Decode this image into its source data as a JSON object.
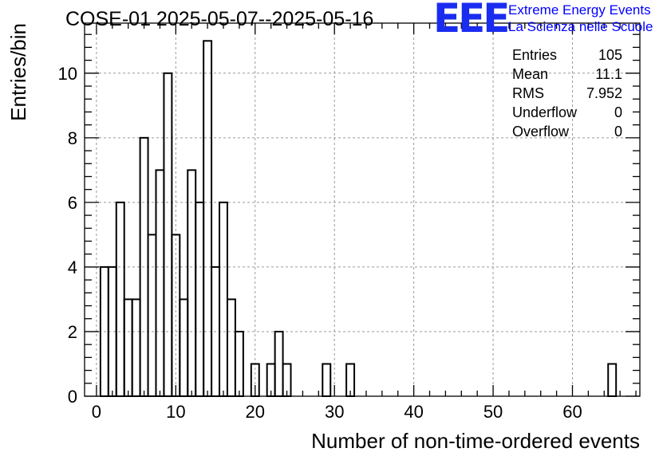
{
  "chart_data": {
    "type": "bar",
    "title": "COSE-01 2025-05-07--2025-05-16",
    "xlabel": "Number of non-time-ordered events",
    "ylabel": "Entries/bin",
    "xlim": [
      -1.5,
      68.5
    ],
    "ylim": [
      0,
      11.55
    ],
    "x_ticks": [
      0,
      10,
      20,
      30,
      40,
      50,
      60
    ],
    "y_ticks": [
      0,
      2,
      4,
      6,
      8,
      10
    ],
    "grid": true,
    "bin_width": 1,
    "bin_starts": [
      0.5,
      1.5,
      2.5,
      3.5,
      4.5,
      5.5,
      6.5,
      7.5,
      8.5,
      9.5,
      10.5,
      11.5,
      12.5,
      13.5,
      14.5,
      15.5,
      16.5,
      17.5,
      18.5,
      19.5,
      20.5,
      21.5,
      22.5,
      23.5,
      24.5,
      25.5,
      26.5,
      27.5,
      28.5,
      29.5,
      30.5,
      31.5,
      32.5,
      64.5
    ],
    "values": [
      4,
      4,
      6,
      3,
      3,
      8,
      5,
      7,
      10,
      5,
      3,
      7,
      6,
      11,
      4,
      6,
      3,
      2,
      0,
      1,
      0,
      1,
      2,
      1,
      0,
      0,
      0,
      0,
      1,
      0,
      0,
      1,
      0,
      1
    ],
    "stats": [
      {
        "label": "Entries",
        "value": "105"
      },
      {
        "label": "Mean",
        "value": "11.1"
      },
      {
        "label": "RMS",
        "value": "7.952"
      },
      {
        "label": "Underflow",
        "value": "0"
      },
      {
        "label": "Overflow",
        "value": "0"
      }
    ]
  },
  "logo": {
    "mark": "EEE",
    "line1": "Extreme Energy Events",
    "line2": "La Scienza nelle Scuole"
  },
  "colors": {
    "line": "#000000",
    "grid": "#9a9a9a",
    "logo": "#1a2cf0"
  }
}
